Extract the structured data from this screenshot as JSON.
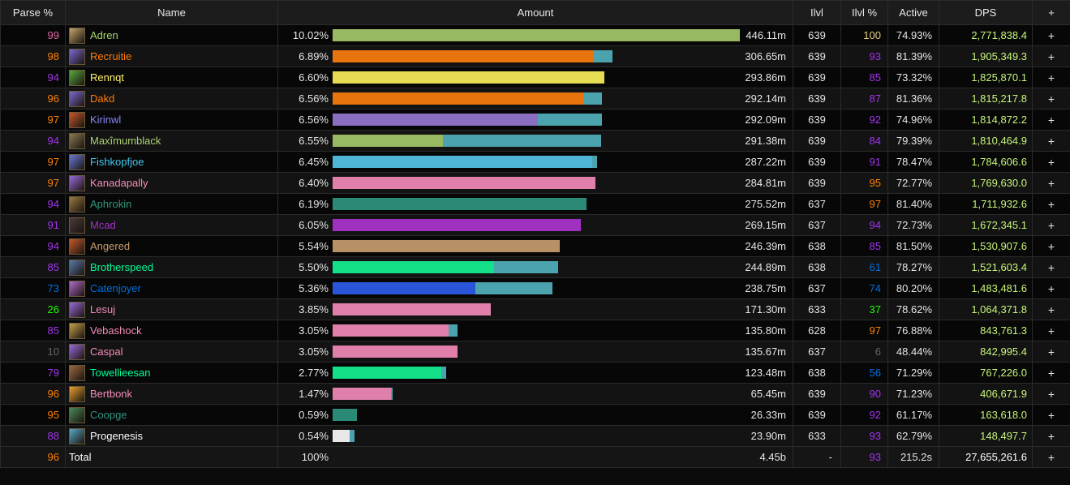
{
  "header": {
    "parse": "Parse %",
    "name": "Name",
    "amount": "Amount",
    "ilvl": "Ilvl",
    "ilvl_pct": "Ilvl %",
    "active": "Active",
    "dps": "DPS",
    "plus": "+"
  },
  "rows": [
    {
      "parse": "99",
      "parse_color": "#e268a8",
      "name": "Adren",
      "name_color": "#aad372",
      "icon": "adren-spec-icon",
      "icon_color": "#c4a36a",
      "pct": "10.02%",
      "share": 0.9917,
      "main": 0.9917,
      "bar_color": "#98b961",
      "amount": "446.11m",
      "ilvl": "639",
      "ilvl_pct": "100",
      "ilvl_pct_color": "#e5cc80",
      "active": "74.93%",
      "dps": "2,771,838.4",
      "plus": "+"
    },
    {
      "parse": "98",
      "parse_color": "#ff8000",
      "name": "Recruitie",
      "name_color": "#ff7c0a",
      "icon": "recruitie-spec-icon",
      "icon_color": "#7b6ad0",
      "pct": "6.89%",
      "share": 0.6818,
      "main": 0.6364,
      "bar_color": "#e8740e",
      "amount": "306.65m",
      "ilvl": "639",
      "ilvl_pct": "93",
      "ilvl_pct_color": "#a335ee",
      "active": "81.39%",
      "dps": "1,905,349.3",
      "plus": "+"
    },
    {
      "parse": "94",
      "parse_color": "#a335ee",
      "name": "Rennqt",
      "name_color": "#fff468",
      "icon": "rennqt-spec-icon",
      "icon_color": "#5aa83c",
      "pct": "6.60%",
      "share": 0.6621,
      "main": 0.6621,
      "bar_color": "#e6dd55",
      "amount": "293.86m",
      "ilvl": "639",
      "ilvl_pct": "85",
      "ilvl_pct_color": "#a335ee",
      "active": "73.32%",
      "dps": "1,825,870.1",
      "plus": "+"
    },
    {
      "parse": "96",
      "parse_color": "#ff8000",
      "name": "Dakd",
      "name_color": "#ff7c0a",
      "icon": "dakd-spec-icon",
      "icon_color": "#7b6ad0",
      "pct": "6.56%",
      "share": 0.6561,
      "main": 0.6126,
      "bar_color": "#e8740e",
      "amount": "292.14m",
      "ilvl": "639",
      "ilvl_pct": "87",
      "ilvl_pct_color": "#a335ee",
      "active": "81.36%",
      "dps": "1,815,217.8",
      "plus": "+"
    },
    {
      "parse": "97",
      "parse_color": "#ff8000",
      "name": "Kirinwl",
      "name_color": "#8788ee",
      "icon": "kirinwl-spec-icon",
      "icon_color": "#c45a2a",
      "pct": "6.56%",
      "share": 0.6561,
      "main": 0.5,
      "bar_color": "#8a6fc0",
      "amount": "292.09m",
      "ilvl": "639",
      "ilvl_pct": "92",
      "ilvl_pct_color": "#a335ee",
      "active": "74.96%",
      "dps": "1,814,872.2",
      "plus": "+"
    },
    {
      "parse": "94",
      "parse_color": "#a335ee",
      "name": "Maxîmumblack",
      "name_color": "#aad372",
      "icon": "maximumblack-spec-icon",
      "icon_color": "#8a7a52",
      "pct": "6.55%",
      "share": 0.6542,
      "main": 0.2684,
      "bar_color": "#98b961",
      "amount": "291.38m",
      "ilvl": "639",
      "ilvl_pct": "84",
      "ilvl_pct_color": "#a335ee",
      "active": "79.39%",
      "dps": "1,810,464.9",
      "plus": "+"
    },
    {
      "parse": "97",
      "parse_color": "#ff8000",
      "name": "Fishkopfjoe",
      "name_color": "#3fc7eb",
      "icon": "fishkopfjoe-spec-icon",
      "icon_color": "#6a7ad8",
      "pct": "6.45%",
      "share": 0.6443,
      "main": 0.6324,
      "bar_color": "#4eb5d8",
      "amount": "287.22m",
      "ilvl": "639",
      "ilvl_pct": "91",
      "ilvl_pct_color": "#a335ee",
      "active": "78.47%",
      "dps": "1,784,606.6",
      "plus": "+"
    },
    {
      "parse": "97",
      "parse_color": "#ff8000",
      "name": "Kanadapally",
      "name_color": "#f48cba",
      "icon": "kanadapally-spec-icon",
      "icon_color": "#9a6ad8",
      "pct": "6.40%",
      "share": 0.6403,
      "main": 0.6403,
      "bar_color": "#e080aa",
      "amount": "284.81m",
      "ilvl": "639",
      "ilvl_pct": "95",
      "ilvl_pct_color": "#ff8000",
      "active": "72.77%",
      "dps": "1,769,630.0",
      "plus": "+"
    },
    {
      "parse": "94",
      "parse_color": "#a335ee",
      "name": "Aphrokin",
      "name_color": "#33937f",
      "icon": "aphrokin-spec-icon",
      "icon_color": "#9a7a40",
      "pct": "6.19%",
      "share": 0.6186,
      "main": 0.6186,
      "bar_color": "#2a8a75",
      "amount": "275.52m",
      "ilvl": "637",
      "ilvl_pct": "97",
      "ilvl_pct_color": "#ff8000",
      "active": "81.40%",
      "dps": "1,711,932.6",
      "plus": "+"
    },
    {
      "parse": "91",
      "parse_color": "#a335ee",
      "name": "Mcad",
      "name_color": "#a330c9",
      "icon": "mcad-spec-icon",
      "icon_color": "#4a3a3a",
      "pct": "6.05%",
      "share": 0.6047,
      "main": 0.6047,
      "bar_color": "#a030c0",
      "amount": "269.15m",
      "ilvl": "637",
      "ilvl_pct": "94",
      "ilvl_pct_color": "#a335ee",
      "active": "72.73%",
      "dps": "1,672,345.1",
      "plus": "+"
    },
    {
      "parse": "94",
      "parse_color": "#a335ee",
      "name": "Angered",
      "name_color": "#c69b6d",
      "icon": "angered-spec-icon",
      "icon_color": "#c45a2a",
      "pct": "5.54%",
      "share": 0.5534,
      "main": 0.5534,
      "bar_color": "#b89065",
      "amount": "246.39m",
      "ilvl": "638",
      "ilvl_pct": "85",
      "ilvl_pct_color": "#a335ee",
      "active": "81.50%",
      "dps": "1,530,907.6",
      "plus": "+"
    },
    {
      "parse": "85",
      "parse_color": "#a335ee",
      "name": "Brotherspeed",
      "name_color": "#00ff98",
      "icon": "brotherspeed-spec-icon",
      "icon_color": "#5a7aa8",
      "pct": "5.50%",
      "share": 0.5494,
      "main": 0.3933,
      "bar_color": "#14e08a",
      "amount": "244.89m",
      "ilvl": "638",
      "ilvl_pct": "61",
      "ilvl_pct_color": "#0070dd",
      "active": "78.27%",
      "dps": "1,521,603.4",
      "plus": "+"
    },
    {
      "parse": "73",
      "parse_color": "#0070dd",
      "name": "Catenjoyer",
      "name_color": "#0070dd",
      "icon": "catenjoyer-spec-icon",
      "icon_color": "#b06ac8",
      "pct": "5.36%",
      "share": 0.5356,
      "main": 0.3488,
      "bar_color": "#2a55d8",
      "amount": "238.75m",
      "ilvl": "637",
      "ilvl_pct": "74",
      "ilvl_pct_color": "#0070dd",
      "active": "80.20%",
      "dps": "1,483,481.6",
      "plus": "+"
    },
    {
      "parse": "26",
      "parse_color": "#1eff00",
      "name": "Lesuj",
      "name_color": "#f48cba",
      "icon": "lesuj-spec-icon",
      "icon_color": "#9a6ad8",
      "pct": "3.85%",
      "share": 0.3854,
      "main": 0.3854,
      "bar_color": "#e080aa",
      "amount": "171.30m",
      "ilvl": "633",
      "ilvl_pct": "37",
      "ilvl_pct_color": "#1eff00",
      "active": "78.62%",
      "dps": "1,064,371.8",
      "plus": "+"
    },
    {
      "parse": "85",
      "parse_color": "#a335ee",
      "name": "Vebashock",
      "name_color": "#f48cba",
      "icon": "vebashock-spec-icon",
      "icon_color": "#c4a04a",
      "pct": "3.05%",
      "share": 0.3043,
      "main": 0.2826,
      "bar_color": "#e080aa",
      "amount": "135.80m",
      "ilvl": "628",
      "ilvl_pct": "97",
      "ilvl_pct_color": "#ff8000",
      "active": "76.88%",
      "dps": "843,761.3",
      "plus": "+"
    },
    {
      "parse": "10",
      "parse_color": "#666666",
      "name": "Caspal",
      "name_color": "#f48cba",
      "icon": "caspal-spec-icon",
      "icon_color": "#9a6ad8",
      "pct": "3.05%",
      "share": 0.3043,
      "main": 0.3043,
      "bar_color": "#e080aa",
      "amount": "135.67m",
      "ilvl": "637",
      "ilvl_pct": "6",
      "ilvl_pct_color": "#666666",
      "active": "48.44%",
      "dps": "842,995.4",
      "plus": "+"
    },
    {
      "parse": "79",
      "parse_color": "#a335ee",
      "name": "Towellieesan",
      "name_color": "#00ff98",
      "icon": "towellieesan-spec-icon",
      "icon_color": "#9a6a40",
      "pct": "2.77%",
      "share": 0.2767,
      "main": 0.2648,
      "bar_color": "#14e08a",
      "amount": "123.48m",
      "ilvl": "638",
      "ilvl_pct": "56",
      "ilvl_pct_color": "#0070dd",
      "active": "71.29%",
      "dps": "767,226.0",
      "plus": "+"
    },
    {
      "parse": "96",
      "parse_color": "#ff8000",
      "name": "Bertbonk",
      "name_color": "#f48cba",
      "icon": "bertbonk-spec-icon",
      "icon_color": "#e8a030",
      "pct": "1.47%",
      "share": 0.1462,
      "main": 0.1423,
      "bar_color": "#e080aa",
      "amount": "65.45m",
      "ilvl": "639",
      "ilvl_pct": "90",
      "ilvl_pct_color": "#a335ee",
      "active": "71.23%",
      "dps": "406,671.9",
      "plus": "+"
    },
    {
      "parse": "95",
      "parse_color": "#ff8000",
      "name": "Coopge",
      "name_color": "#33937f",
      "icon": "coopge-spec-icon",
      "icon_color": "#4a8a5a",
      "pct": "0.59%",
      "share": 0.0593,
      "main": 0.0593,
      "bar_color": "#2a8a75",
      "amount": "26.33m",
      "ilvl": "639",
      "ilvl_pct": "92",
      "ilvl_pct_color": "#a335ee",
      "active": "61.17%",
      "dps": "163,618.0",
      "plus": "+"
    },
    {
      "parse": "88",
      "parse_color": "#a335ee",
      "name": "Progenesis",
      "name_color": "#ffffff",
      "icon": "progenesis-spec-icon",
      "icon_color": "#5aa8c8",
      "pct": "0.54%",
      "share": 0.0534,
      "main": 0.0415,
      "bar_color": "#e8e8e8",
      "amount": "23.90m",
      "ilvl": "633",
      "ilvl_pct": "93",
      "ilvl_pct_color": "#a335ee",
      "active": "62.79%",
      "dps": "148,497.7",
      "plus": "+"
    }
  ],
  "total": {
    "parse": "96",
    "parse_color": "#ff8000",
    "name": "Total",
    "pct": "100%",
    "amount": "4.45b",
    "ilvl": "-",
    "ilvl_pct": "93",
    "ilvl_pct_color": "#a335ee",
    "active": "215.2s",
    "dps": "27,655,261.6",
    "plus": "+"
  },
  "colors": {
    "background": "#0b0b0b",
    "header_bg": "#1c1c1c",
    "overflow_bar": "#4aa3ad",
    "dps_text": "#c6f57a"
  }
}
